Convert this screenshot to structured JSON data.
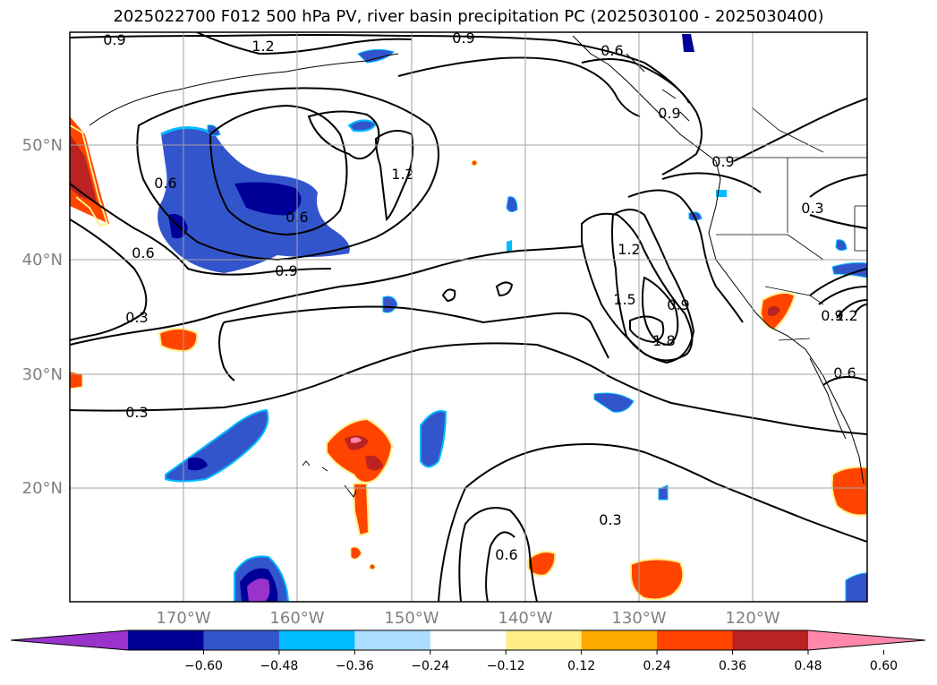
{
  "title": "2025022700 F012 500 hPa PV, river basin precipitation PC (2025030100 - 2025030400)",
  "lat_labels": [
    "50°N",
    "40°N",
    "30°N",
    "20°N"
  ],
  "lon_labels": [
    "170°W",
    "160°W",
    "150°W",
    "140°W",
    "130°W",
    "120°W"
  ],
  "contour_labels": [
    "0.9",
    "1.2",
    "0.9",
    "0.6",
    "0.9",
    "0.6",
    "1.2",
    "0.6",
    "0.6",
    "0.9",
    "0.3",
    "0.3",
    "1.2",
    "1.5",
    "0.9",
    "1.8",
    "0.3",
    "1.2",
    "0.9",
    "0.6",
    "0.3",
    "0.6",
    "0.9"
  ],
  "colorbar": {
    "ticks": [
      "−0.60",
      "−0.48",
      "−0.36",
      "−0.24",
      "−0.12",
      "0.12",
      "0.24",
      "0.36",
      "0.48",
      "0.60"
    ],
    "colors": [
      "#9933cc",
      "#000099",
      "#3355cc",
      "#00bbff",
      "#aaddff",
      "#ffffff",
      "#ffee88",
      "#ffaa00",
      "#ff4400",
      "#bb2222",
      "#ff88aa"
    ]
  },
  "colors": {
    "contour": "#000000",
    "grid": "#a0a0a0",
    "tick_label": "#808080"
  }
}
